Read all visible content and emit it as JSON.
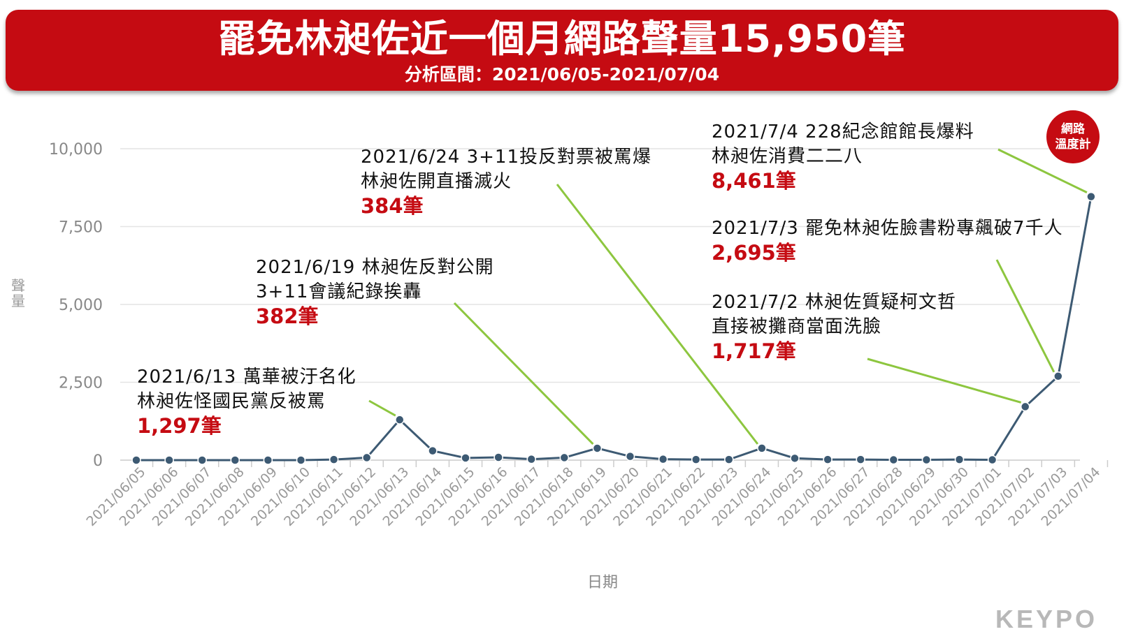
{
  "header": {
    "title": "罷免林昶佐近一個月網路聲量15,950筆",
    "subtitle": "分析區間：2021/06/05-2021/07/04"
  },
  "chart_data": {
    "type": "line",
    "xlabel": "日期",
    "ylabel": "聲量",
    "ylim": [
      0,
      10000
    ],
    "yticks": [
      0,
      2500,
      5000,
      7500,
      10000
    ],
    "ytick_labels": [
      "0",
      "2,500",
      "5,000",
      "7,500",
      "10,000"
    ],
    "grid": true,
    "categories": [
      "2021/06/05",
      "2021/06/06",
      "2021/06/07",
      "2021/06/08",
      "2021/06/09",
      "2021/06/10",
      "2021/06/11",
      "2021/06/12",
      "2021/06/13",
      "2021/06/14",
      "2021/06/15",
      "2021/06/16",
      "2021/06/17",
      "2021/06/18",
      "2021/06/19",
      "2021/06/20",
      "2021/06/21",
      "2021/06/22",
      "2021/06/23",
      "2021/06/24",
      "2021/06/25",
      "2021/06/26",
      "2021/06/27",
      "2021/06/28",
      "2021/06/29",
      "2021/06/30",
      "2021/07/01",
      "2021/07/02",
      "2021/07/03",
      "2021/07/04"
    ],
    "series": [
      {
        "name": "",
        "color": "#3d5a73",
        "values": [
          0,
          0,
          0,
          0,
          0,
          0,
          20,
          80,
          1297,
          300,
          70,
          90,
          30,
          80,
          382,
          120,
          30,
          20,
          20,
          384,
          60,
          20,
          20,
          10,
          10,
          20,
          10,
          1717,
          2695,
          8461
        ]
      }
    ],
    "annotations": [
      {
        "lines": [
          "2021/6/13 萬華被汙名化",
          "林昶佐怪國民黨反被罵"
        ],
        "count": "1,297筆",
        "index": 8
      },
      {
        "lines": [
          "2021/6/19 林昶佐反對公開",
          "3+11會議紀錄挨轟"
        ],
        "count": "382筆",
        "index": 14
      },
      {
        "lines": [
          "2021/6/24 3+11投反對票被罵爆",
          "林昶佐開直播滅火"
        ],
        "count": "384筆",
        "index": 19
      },
      {
        "lines": [
          "2021/7/2 林昶佐質疑柯文哲",
          "直接被攤商當面洗臉"
        ],
        "count": "1,717筆",
        "index": 27
      },
      {
        "lines": [
          "2021/7/3 罷免林昶佐臉書粉專飆破7千人"
        ],
        "count": "2,695筆",
        "index": 28
      },
      {
        "lines": [
          "2021/7/4 228紀念館館長爆料",
          "林昶佐消費二二八"
        ],
        "count": "8,461筆",
        "index": 29
      }
    ],
    "leader_color": "#8dc63f"
  },
  "badge": {
    "line1": "網路",
    "line2": "溫度計"
  },
  "brand": "KEYPO"
}
